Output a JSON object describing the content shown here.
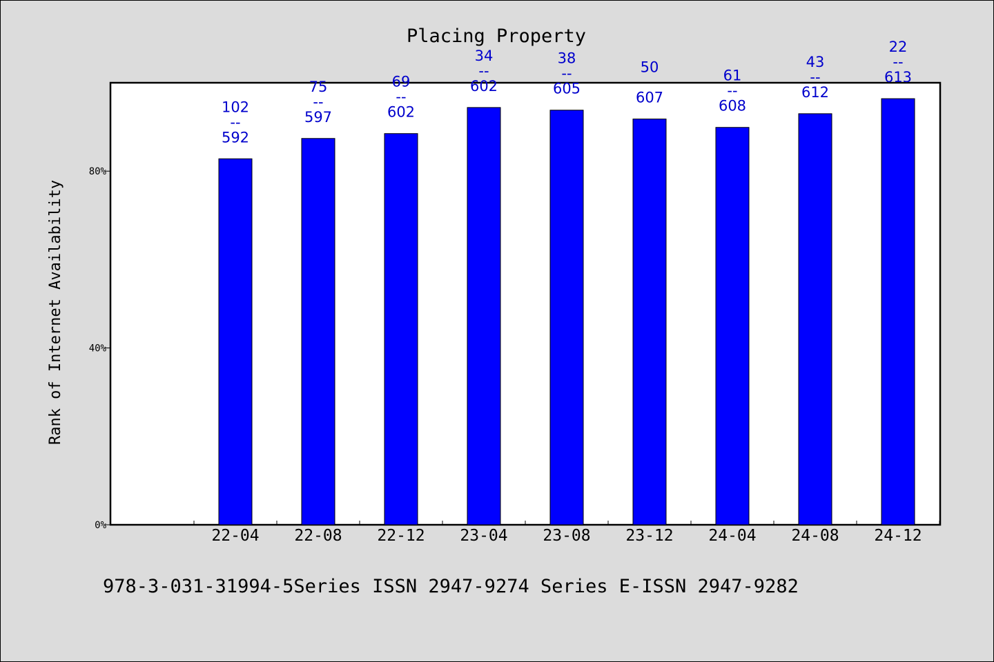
{
  "chart_data": {
    "type": "bar",
    "title": "Placing Property",
    "ylabel": "Rank of Internet Availability",
    "xlabel": "",
    "ylim": [
      0,
      100
    ],
    "yticks": [
      {
        "value": 0,
        "label": "0%"
      },
      {
        "value": 40,
        "label": "40%"
      },
      {
        "value": 80,
        "label": "80%"
      }
    ],
    "categories": [
      "22-04",
      "22-08",
      "22-12",
      "23-04",
      "23-08",
      "23-12",
      "24-04",
      "24-08",
      "24-12"
    ],
    "values": [
      82.8,
      87.4,
      88.5,
      94.4,
      93.8,
      91.8,
      89.9,
      93.0,
      96.4
    ],
    "data_labels": [
      {
        "top": "102",
        "mid": "--",
        "bottom": "592"
      },
      {
        "top": "75",
        "mid": "--",
        "bottom": "597"
      },
      {
        "top": "69",
        "mid": "--",
        "bottom": "602"
      },
      {
        "top": "34",
        "mid": "--",
        "bottom": "602"
      },
      {
        "top": "38",
        "mid": "--",
        "bottom": "605"
      },
      {
        "top": "50",
        "mid": "",
        "bottom": "607"
      },
      {
        "top": "61",
        "mid": "--",
        "bottom": "608"
      },
      {
        "top": "43",
        "mid": "--",
        "bottom": "612"
      },
      {
        "top": "22",
        "mid": "--",
        "bottom": "613"
      }
    ],
    "bar_color": "#0000ff",
    "label_color": "#0000cc",
    "grid": false,
    "legend": "none"
  },
  "footer": "978-3-031-31994-5Series ISSN 2947-9274 Series E-ISSN 2947-9282"
}
